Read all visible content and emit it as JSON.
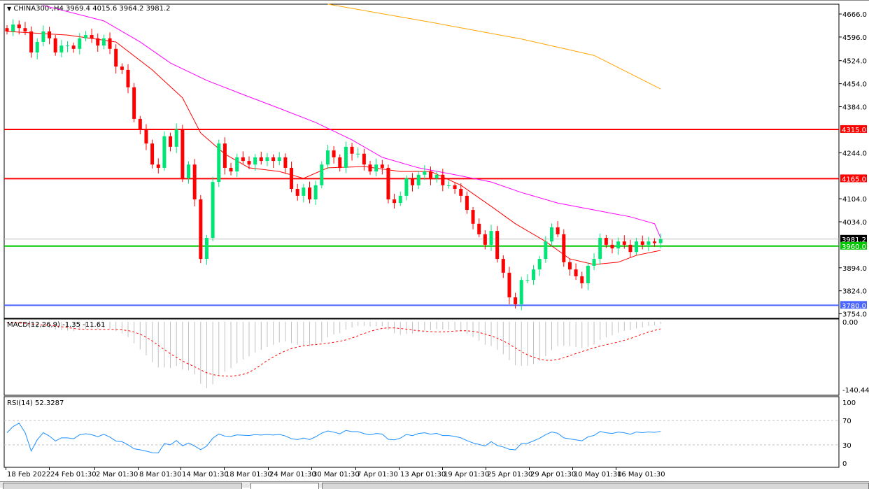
{
  "header": {
    "symbol_line": "CHINA300-,H4  3969.4 4015.6 3964.2 3981.2"
  },
  "colors": {
    "bull": "#00e676",
    "bear": "#ff0000",
    "ma_fast": "#ff0000",
    "ma_mid": "#ff00ff",
    "ma_slow": "#ffa500",
    "macd_hist": "#c0c0c0",
    "macd_signal": "#ff0000",
    "rsi": "#1e90ff"
  },
  "price_axis": {
    "ticks": [
      "4666.0",
      "4596.0",
      "4524.0",
      "4454.0",
      "4384.0",
      "4244.0",
      "4104.0",
      "4034.0",
      "3894.0",
      "3824.0",
      "3754.0"
    ],
    "range": [
      3754,
      4666
    ]
  },
  "levels": [
    {
      "price": 4315.0,
      "label": "4315.0",
      "color": "#ff0000"
    },
    {
      "price": 4165.0,
      "label": "4165.0",
      "color": "#ff0000"
    },
    {
      "price": 3960.0,
      "label": "3960.0",
      "color": "#00c800"
    },
    {
      "price": 3780.0,
      "label": "3780.0",
      "color": "#4a64ff"
    }
  ],
  "current_price": {
    "price": 3981.2,
    "label": "3981.2"
  },
  "candles_close": [
    4613,
    4634,
    4623,
    4613,
    4549,
    4581,
    4613,
    4592,
    4549,
    4570,
    4570,
    4560,
    4592,
    4602,
    4592,
    4570,
    4592,
    4560,
    4506,
    4496,
    4443,
    4347,
    4315,
    4272,
    4208,
    4198,
    4294,
    4262,
    4315,
    4166,
    4208,
    4102,
    3921,
    3985,
    4155,
    4272,
    4198,
    4187,
    4230,
    4219,
    4208,
    4230,
    4219,
    4230,
    4219,
    4230,
    4198,
    4134,
    4113,
    4138,
    4102,
    4145,
    4208,
    4251,
    4230,
    4198,
    4262,
    4241,
    4241,
    4208,
    4187,
    4208,
    4198,
    4102,
    4091,
    4113,
    4166,
    4145,
    4177,
    4187,
    4166,
    4177,
    4145,
    4145,
    4134,
    4113,
    4070,
    4028,
    3996,
    3964,
    4006,
    3921,
    3879,
    3804,
    3783,
    3857,
    3857,
    3889,
    3921,
    3974,
    4017,
    3996,
    3911,
    3889,
    3868,
    3847,
    3900,
    3921,
    3985,
    3964,
    3953,
    3974,
    3964,
    3942,
    3974,
    3964,
    3974,
    3969,
    3981.2
  ],
  "ma_fast": [
    [
      0,
      4613
    ],
    [
      10,
      4602
    ],
    [
      18,
      4581
    ],
    [
      24,
      4496
    ],
    [
      29,
      4411
    ],
    [
      32,
      4304
    ],
    [
      36,
      4240
    ],
    [
      40,
      4198
    ],
    [
      45,
      4187
    ],
    [
      49,
      4166
    ],
    [
      53,
      4198
    ],
    [
      59,
      4202
    ],
    [
      65,
      4187
    ],
    [
      70,
      4187
    ],
    [
      75,
      4145
    ],
    [
      80,
      4081
    ],
    [
      84,
      4028
    ],
    [
      89,
      3974
    ],
    [
      93,
      3921
    ],
    [
      97,
      3904
    ],
    [
      101,
      3911
    ],
    [
      104,
      3932
    ],
    [
      108,
      3947
    ]
  ],
  "ma_mid": [
    [
      6,
      4692
    ],
    [
      16,
      4645
    ],
    [
      22,
      4581
    ],
    [
      27,
      4517
    ],
    [
      33,
      4464
    ],
    [
      39,
      4421
    ],
    [
      45,
      4379
    ],
    [
      51,
      4336
    ],
    [
      57,
      4283
    ],
    [
      62,
      4230
    ],
    [
      68,
      4198
    ],
    [
      74,
      4177
    ],
    [
      80,
      4155
    ],
    [
      85,
      4123
    ],
    [
      91,
      4091
    ],
    [
      97,
      4070
    ],
    [
      103,
      4049
    ],
    [
      107,
      4028
    ],
    [
      108,
      3985
    ]
  ],
  "ma_slow": [
    [
      53,
      4696
    ],
    [
      70,
      4641
    ],
    [
      85,
      4590
    ],
    [
      97,
      4540
    ],
    [
      108,
      4438
    ]
  ],
  "macd": {
    "label": "MACD(12,26,9) -1.35 -11.61",
    "ticks": [
      "0.00",
      "-140.44"
    ],
    "range": [
      -140.44,
      0
    ]
  },
  "rsi": {
    "label": "RSI(14) 52.3287",
    "ticks": [
      "100",
      "70",
      "30",
      "0"
    ],
    "levels": [
      70,
      30
    ]
  },
  "time_axis": [
    "18 Feb 2022",
    "24 Feb 01:30",
    "2 Mar 01:30",
    "8 Mar 01:30",
    "14 Mar 01:30",
    "18 Mar 01:30",
    "24 Mar 01:30",
    "30 Mar 01:30",
    "7 Apr 01:30",
    "13 Apr 01:30",
    "19 Apr 01:30",
    "25 Apr 01:30",
    "29 Apr 01:30",
    "10 May 01:30",
    "16 May 01:30"
  ]
}
